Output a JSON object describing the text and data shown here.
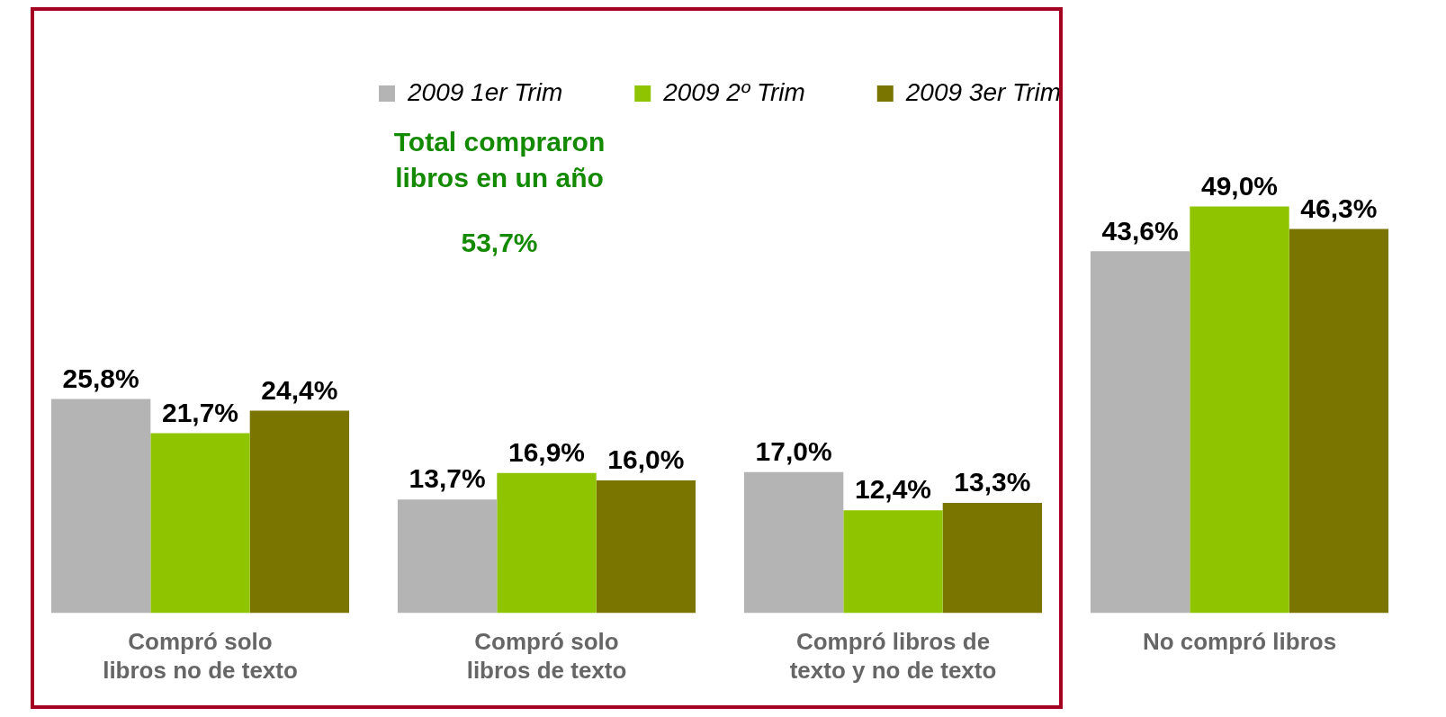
{
  "chart_data": {
    "type": "bar",
    "categories": [
      "Compró solo libros no de texto",
      "Compró solo libros de texto",
      "Compró libros de texto y no de texto",
      "No compró libros"
    ],
    "series": [
      {
        "name": "2009 1er Trim",
        "color": "#b4b4b4",
        "values": [
          25.8,
          13.7,
          17.0,
          43.6
        ],
        "value_labels": [
          "25,8%",
          "13,7%",
          "17,0%",
          "43,6%"
        ]
      },
      {
        "name": "2009 2º Trim",
        "color": "#8fc400",
        "values": [
          21.7,
          16.9,
          12.4,
          49.0
        ],
        "value_labels": [
          "21,7%",
          "16,9%",
          "12,4%",
          "49,0%"
        ]
      },
      {
        "name": "2009 3er Trim",
        "color": "#7a7400",
        "values": [
          24.4,
          16.0,
          13.3,
          46.3
        ],
        "value_labels": [
          "24,4%",
          "16,0%",
          "13,3%",
          "46,3%"
        ]
      }
    ],
    "annotations": [
      "Total compraron libros en un año",
      "53,7%"
    ],
    "legend": "top",
    "grid": false,
    "tick_labels": "x"
  }
}
